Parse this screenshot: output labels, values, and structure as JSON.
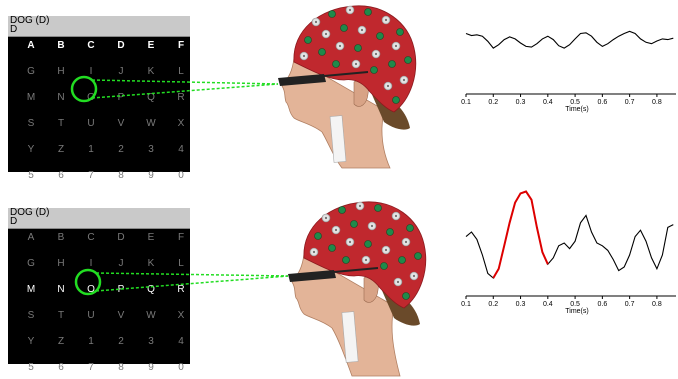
{
  "panels": [
    {
      "title_line1": "DOG (D)",
      "title_line2": "D",
      "highlight": {
        "type": "row",
        "index": 0
      },
      "target": "O",
      "chart": {
        "xlabel": "Time(s)",
        "ticks": [
          "0.1",
          "0.2",
          "0.3",
          "0.4",
          "0.5",
          "0.6",
          "0.7",
          "0.8"
        ]
      }
    },
    {
      "title_line1": "DOG (D)",
      "title_line2": "D",
      "highlight": {
        "type": "row",
        "index": 2
      },
      "target": "O",
      "chart": {
        "xlabel": "Time(s)",
        "ticks": [
          "0.1",
          "0.2",
          "0.3",
          "0.4",
          "0.5",
          "0.6",
          "0.7",
          "0.8"
        ]
      }
    }
  ],
  "grid": [
    [
      "A",
      "B",
      "C",
      "D",
      "E",
      "F"
    ],
    [
      "G",
      "H",
      "I",
      "J",
      "K",
      "L"
    ],
    [
      "M",
      "N",
      "O",
      "P",
      "Q",
      "R"
    ],
    [
      "S",
      "T",
      "U",
      "V",
      "W",
      "X"
    ],
    [
      "Y",
      "Z",
      "1",
      "2",
      "3",
      "4"
    ],
    [
      "5",
      "6",
      "7",
      "8",
      "9",
      "0"
    ]
  ],
  "colors": {
    "target_circle": "#22dd22",
    "gaze_line": "#22dd22",
    "signal": "#000000",
    "p300": "#dd0000",
    "cap": "#c0282e"
  },
  "icons": [
    "eeg-cap-head-illustration"
  ],
  "chart_data": [
    {
      "type": "line",
      "xlabel": "Time(s)",
      "xlim": [
        0.1,
        0.87
      ],
      "x": [
        0.1,
        0.12,
        0.14,
        0.16,
        0.18,
        0.2,
        0.22,
        0.24,
        0.26,
        0.28,
        0.3,
        0.32,
        0.34,
        0.36,
        0.38,
        0.4,
        0.42,
        0.44,
        0.46,
        0.48,
        0.5,
        0.52,
        0.54,
        0.56,
        0.58,
        0.6,
        0.62,
        0.64,
        0.66,
        0.68,
        0.7,
        0.72,
        0.74,
        0.76,
        0.78,
        0.8,
        0.82,
        0.84,
        0.86
      ],
      "series": [
        {
          "values": [
            0.78,
            0.72,
            0.74,
            0.7,
            0.55,
            0.35,
            0.45,
            0.6,
            0.68,
            0.62,
            0.5,
            0.4,
            0.38,
            0.48,
            0.62,
            0.7,
            0.6,
            0.42,
            0.35,
            0.45,
            0.62,
            0.78,
            0.8,
            0.7,
            0.52,
            0.4,
            0.48,
            0.6,
            0.7,
            0.78,
            0.84,
            0.78,
            0.62,
            0.52,
            0.48,
            0.56,
            0.62,
            0.6,
            0.64
          ]
        }
      ]
    },
    {
      "type": "line",
      "xlabel": "Time(s)",
      "xlim": [
        0.1,
        0.87
      ],
      "x": [
        0.1,
        0.12,
        0.14,
        0.16,
        0.18,
        0.2,
        0.22,
        0.24,
        0.26,
        0.28,
        0.3,
        0.32,
        0.34,
        0.36,
        0.38,
        0.4,
        0.42,
        0.44,
        0.46,
        0.48,
        0.5,
        0.52,
        0.54,
        0.56,
        0.58,
        0.6,
        0.62,
        0.64,
        0.66,
        0.68,
        0.7,
        0.72,
        0.74,
        0.76,
        0.78,
        0.8,
        0.82,
        0.84,
        0.86
      ],
      "series": [
        {
          "values": [
            0.45,
            0.5,
            0.42,
            0.25,
            0.05,
            0.0,
            0.1,
            0.35,
            0.6,
            0.82,
            0.92,
            0.94,
            0.85,
            0.55,
            0.28,
            0.15,
            0.22,
            0.35,
            0.38,
            0.32,
            0.4,
            0.6,
            0.68,
            0.5,
            0.38,
            0.35,
            0.3,
            0.2,
            0.08,
            0.12,
            0.25,
            0.45,
            0.52,
            0.4,
            0.22,
            0.1,
            0.25,
            0.55,
            0.58
          ]
        },
        {
          "segment": "p300",
          "range": [
            0.2,
            0.4
          ]
        }
      ]
    }
  ]
}
